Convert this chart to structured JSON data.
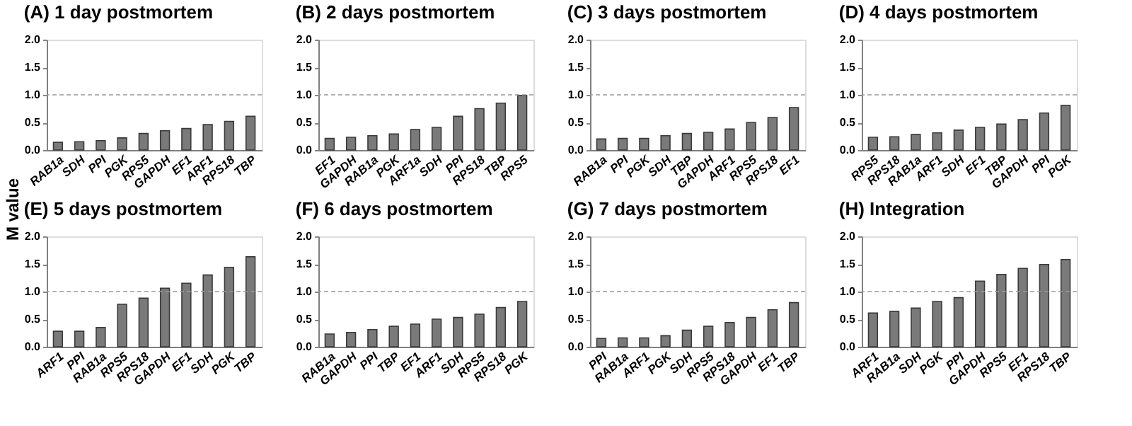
{
  "chart_data": [
    {
      "type": "bar",
      "title": "(A) 1 day postmortem",
      "ylabel": "M value",
      "categories": [
        "RAB1a",
        "SDH",
        "PPI",
        "PGK",
        "RPS5",
        "GAPDH",
        "EF1",
        "ARF1",
        "RPS18",
        "TBP"
      ],
      "values": [
        0.14,
        0.15,
        0.17,
        0.22,
        0.3,
        0.35,
        0.39,
        0.46,
        0.52,
        0.61
      ],
      "color": "#7a7a7a",
      "ylim": [
        0,
        2
      ],
      "yticks": [
        {
          "value": 0,
          "label": "0.0"
        },
        {
          "value": 0.5,
          "label": "0.5"
        },
        {
          "value": 1,
          "label": "1.0"
        },
        {
          "value": 1.5,
          "label": "1.5"
        },
        {
          "value": 2,
          "label": "2.0"
        }
      ],
      "ref_lines": [
        {
          "axis": "y",
          "value": 1,
          "color": "#999999",
          "line_style": "dashed"
        }
      ],
      "grid": false
    },
    {
      "type": "bar",
      "title": "(B) 2 days postmortem",
      "categories": [
        "EF1",
        "GAPDH",
        "RAB1a",
        "PGK",
        "ARF1a",
        "SDH",
        "PPI",
        "RPS18",
        "TBP",
        "RPS5"
      ],
      "values": [
        0.21,
        0.23,
        0.26,
        0.29,
        0.37,
        0.41,
        0.61,
        0.75,
        0.85,
        0.99
      ],
      "color": "#7a7a7a",
      "ylim": [
        0,
        2
      ],
      "yticks": [
        {
          "value": 0,
          "label": "0.0"
        },
        {
          "value": 0.5,
          "label": "0.5"
        },
        {
          "value": 1,
          "label": "1.0"
        },
        {
          "value": 1.5,
          "label": "1.5"
        },
        {
          "value": 2,
          "label": "2.0"
        }
      ],
      "ref_lines": [
        {
          "axis": "y",
          "value": 1,
          "color": "#999999",
          "line_style": "dashed"
        }
      ],
      "grid": false
    },
    {
      "type": "bar",
      "title": "(C) 3 days postmortem",
      "categories": [
        "RAB1a",
        "PPI",
        "PGK",
        "SDH",
        "TBP",
        "GAPDH",
        "ARF1",
        "RPS5",
        "RPS18",
        "EF1"
      ],
      "values": [
        0.2,
        0.21,
        0.21,
        0.26,
        0.3,
        0.32,
        0.38,
        0.5,
        0.59,
        0.77
      ],
      "color": "#7a7a7a",
      "ylim": [
        0,
        2
      ],
      "yticks": [
        {
          "value": 0,
          "label": "0.0"
        },
        {
          "value": 0.5,
          "label": "0.5"
        },
        {
          "value": 1,
          "label": "1.0"
        },
        {
          "value": 1.5,
          "label": "1.5"
        },
        {
          "value": 2,
          "label": "2.0"
        }
      ],
      "ref_lines": [
        {
          "axis": "y",
          "value": 1,
          "color": "#999999",
          "line_style": "dashed"
        }
      ],
      "grid": false
    },
    {
      "type": "bar",
      "title": "(D) 4 days postmortem",
      "categories": [
        "RPS5",
        "RPS18",
        "RAB1a",
        "ARF1",
        "SDH",
        "EF1",
        "TBP",
        "GAPDH",
        "PPI",
        "PGK"
      ],
      "values": [
        0.23,
        0.24,
        0.28,
        0.31,
        0.36,
        0.41,
        0.47,
        0.55,
        0.67,
        0.81
      ],
      "color": "#7a7a7a",
      "ylim": [
        0,
        2
      ],
      "yticks": [
        {
          "value": 0,
          "label": "0.0"
        },
        {
          "value": 0.5,
          "label": "0.5"
        },
        {
          "value": 1,
          "label": "1.0"
        },
        {
          "value": 1.5,
          "label": "1.5"
        },
        {
          "value": 2,
          "label": "2.0"
        }
      ],
      "ref_lines": [
        {
          "axis": "y",
          "value": 1,
          "color": "#999999",
          "line_style": "dashed"
        }
      ],
      "grid": false
    },
    {
      "type": "bar",
      "title": "(E) 5 days postmortem",
      "categories": [
        "ARF1",
        "PPI",
        "RAB1a",
        "RPS5",
        "RPS18",
        "GAPDH",
        "EF1",
        "SDH",
        "PGK",
        "TBP"
      ],
      "values": [
        0.28,
        0.28,
        0.35,
        0.77,
        0.88,
        1.06,
        1.15,
        1.3,
        1.44,
        1.63
      ],
      "color": "#7a7a7a",
      "ylim": [
        0,
        2
      ],
      "yticks": [
        {
          "value": 0,
          "label": "0.0"
        },
        {
          "value": 0.5,
          "label": "0.5"
        },
        {
          "value": 1,
          "label": "1.0"
        },
        {
          "value": 1.5,
          "label": "1.5"
        },
        {
          "value": 2,
          "label": "2.0"
        }
      ],
      "ref_lines": [
        {
          "axis": "y",
          "value": 1,
          "color": "#999999",
          "line_style": "dashed"
        }
      ],
      "grid": false
    },
    {
      "type": "bar",
      "title": "(F) 6 days postmortem",
      "categories": [
        "RAB1a",
        "GAPDH",
        "PPI",
        "TBP",
        "EF1",
        "ARF1",
        "SDH",
        "RPS5",
        "RPS18",
        "PGK"
      ],
      "values": [
        0.23,
        0.26,
        0.31,
        0.37,
        0.41,
        0.5,
        0.53,
        0.59,
        0.71,
        0.82
      ],
      "color": "#7a7a7a",
      "ylim": [
        0,
        2
      ],
      "yticks": [
        {
          "value": 0,
          "label": "0.0"
        },
        {
          "value": 0.5,
          "label": "0.5"
        },
        {
          "value": 1,
          "label": "1.0"
        },
        {
          "value": 1.5,
          "label": "1.5"
        },
        {
          "value": 2,
          "label": "2.0"
        }
      ],
      "ref_lines": [
        {
          "axis": "y",
          "value": 1,
          "color": "#999999",
          "line_style": "dashed"
        }
      ],
      "grid": false
    },
    {
      "type": "bar",
      "title": "(G) 7 days postmortem",
      "categories": [
        "PPI",
        "RAB1a",
        "ARF1",
        "PGK",
        "SDH",
        "RPS5",
        "RPS18",
        "GAPDH",
        "EF1",
        "TBP"
      ],
      "values": [
        0.15,
        0.16,
        0.16,
        0.2,
        0.3,
        0.37,
        0.44,
        0.53,
        0.67,
        0.8
      ],
      "color": "#7a7a7a",
      "ylim": [
        0,
        2
      ],
      "yticks": [
        {
          "value": 0,
          "label": "0.0"
        },
        {
          "value": 0.5,
          "label": "0.5"
        },
        {
          "value": 1,
          "label": "1.0"
        },
        {
          "value": 1.5,
          "label": "1.5"
        },
        {
          "value": 2,
          "label": "2.0"
        }
      ],
      "ref_lines": [
        {
          "axis": "y",
          "value": 1,
          "color": "#999999",
          "line_style": "dashed"
        }
      ],
      "grid": false
    },
    {
      "type": "bar",
      "title": "(H) Integration",
      "categories": [
        "ARF1",
        "RAB1a",
        "SDH",
        "PGK",
        "PPI",
        "GAPDH",
        "RPS5",
        "EF1",
        "RPS18",
        "TBP"
      ],
      "values": [
        0.61,
        0.64,
        0.7,
        0.82,
        0.89,
        1.19,
        1.31,
        1.42,
        1.49,
        1.58
      ],
      "color": "#7a7a7a",
      "ylim": [
        0,
        2
      ],
      "yticks": [
        {
          "value": 0,
          "label": "0.0"
        },
        {
          "value": 0.5,
          "label": "0.5"
        },
        {
          "value": 1,
          "label": "1.0"
        },
        {
          "value": 1.5,
          "label": "1.5"
        },
        {
          "value": 2,
          "label": "2.0"
        }
      ],
      "ref_lines": [
        {
          "axis": "y",
          "value": 1,
          "color": "#999999",
          "line_style": "dashed"
        }
      ],
      "grid": false
    }
  ]
}
